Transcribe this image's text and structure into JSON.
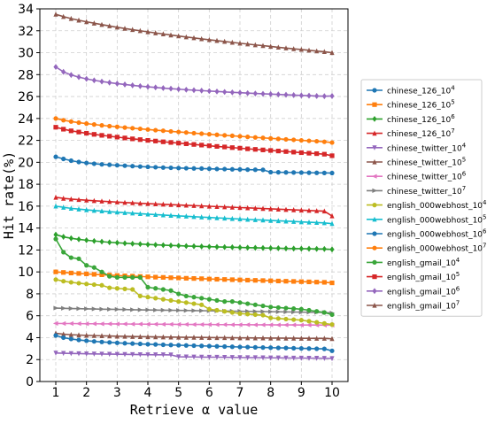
{
  "chart_data": {
    "type": "line",
    "xlabel": "Retrieve α value",
    "ylabel": "Hit rate(%)",
    "xlim": [
      1,
      10
    ],
    "ylim": [
      0,
      34
    ],
    "xticks": [
      "1",
      "2",
      "3",
      "4",
      "5",
      "6",
      "7",
      "8",
      "9",
      "10"
    ],
    "yticks": [
      "0",
      "2",
      "4",
      "6",
      "8",
      "10",
      "12",
      "14",
      "16",
      "18",
      "20",
      "22",
      "24",
      "26",
      "28",
      "30",
      "32",
      "34"
    ],
    "x": [
      1.0,
      1.25,
      1.5,
      1.75,
      2.0,
      2.25,
      2.5,
      2.75,
      3.0,
      3.25,
      3.5,
      3.75,
      4.0,
      4.25,
      4.5,
      4.75,
      5.0,
      5.25,
      5.5,
      5.75,
      6.0,
      6.25,
      6.5,
      6.75,
      7.0,
      7.25,
      7.5,
      7.75,
      8.0,
      8.25,
      8.5,
      8.75,
      9.0,
      9.25,
      9.5,
      9.75,
      10.0
    ],
    "grid": true,
    "grid_style": "dashed",
    "legend_position": "right",
    "series": [
      {
        "name": "chinese_126_10",
        "exp": "4",
        "color": "#1f77b4",
        "marker": "circle",
        "values": [
          20.5,
          20.31,
          20.15,
          20.03,
          19.94,
          19.87,
          19.81,
          19.77,
          19.73,
          19.69,
          19.65,
          19.61,
          19.58,
          19.55,
          19.52,
          19.5,
          19.48,
          19.46,
          19.44,
          19.43,
          19.41,
          19.39,
          19.38,
          19.36,
          19.35,
          19.33,
          19.32,
          19.31,
          19.1,
          19.09,
          19.08,
          19.07,
          19.06,
          19.05,
          19.04,
          19.03,
          19.02
        ]
      },
      {
        "name": "chinese_126_10",
        "exp": "5",
        "color": "#ff7f0e",
        "marker": "square",
        "values": [
          10.0,
          9.95,
          9.9,
          9.86,
          9.82,
          9.78,
          9.74,
          9.71,
          9.67,
          9.64,
          9.61,
          9.58,
          9.55,
          9.52,
          9.5,
          9.47,
          9.45,
          9.42,
          9.4,
          9.38,
          9.35,
          9.33,
          9.31,
          9.29,
          9.27,
          9.25,
          9.23,
          9.21,
          9.19,
          9.17,
          9.15,
          9.13,
          9.11,
          9.09,
          9.07,
          9.05,
          9.0
        ]
      },
      {
        "name": "chinese_126_10",
        "exp": "6",
        "color": "#2ca02c",
        "marker": "diamond",
        "values": [
          13.4,
          13.2,
          13.07,
          12.97,
          12.89,
          12.82,
          12.76,
          12.7,
          12.66,
          12.61,
          12.57,
          12.54,
          12.5,
          12.47,
          12.44,
          12.41,
          12.39,
          12.36,
          12.34,
          12.32,
          12.3,
          12.28,
          12.26,
          12.25,
          12.23,
          12.21,
          12.2,
          12.18,
          12.17,
          12.16,
          12.14,
          12.13,
          12.12,
          12.11,
          12.1,
          12.09,
          12.05
        ]
      },
      {
        "name": "chinese_126_10",
        "exp": "7",
        "color": "#d62728",
        "marker": "triangle",
        "values": [
          16.8,
          16.71,
          16.64,
          16.59,
          16.54,
          16.49,
          16.45,
          16.41,
          16.37,
          16.33,
          16.3,
          16.26,
          16.23,
          16.2,
          16.17,
          16.14,
          16.11,
          16.08,
          16.05,
          16.02,
          15.99,
          15.96,
          15.93,
          15.9,
          15.87,
          15.84,
          15.81,
          15.78,
          15.75,
          15.72,
          15.69,
          15.66,
          15.63,
          15.6,
          15.57,
          15.54,
          15.1
        ]
      },
      {
        "name": "chinese_twitter_10",
        "exp": "4",
        "color": "#9467bd",
        "marker": "triangle-down",
        "values": [
          2.6,
          2.58,
          2.56,
          2.55,
          2.53,
          2.52,
          2.51,
          2.5,
          2.49,
          2.48,
          2.47,
          2.46,
          2.45,
          2.44,
          2.44,
          2.43,
          2.26,
          2.25,
          2.24,
          2.23,
          2.22,
          2.22,
          2.21,
          2.2,
          2.19,
          2.18,
          2.18,
          2.17,
          2.16,
          2.16,
          2.15,
          2.14,
          2.14,
          2.13,
          2.13,
          2.12,
          2.1
        ]
      },
      {
        "name": "chinese_twitter_10",
        "exp": "5",
        "color": "#8c564b",
        "marker": "triangle-up",
        "values": [
          4.4,
          4.32,
          4.27,
          4.24,
          4.21,
          4.19,
          4.17,
          4.15,
          4.13,
          4.12,
          4.1,
          4.09,
          4.08,
          4.07,
          4.06,
          4.05,
          4.04,
          4.03,
          4.03,
          4.02,
          4.01,
          4.0,
          4.0,
          3.99,
          3.98,
          3.98,
          3.97,
          3.97,
          3.96,
          3.96,
          3.95,
          3.95,
          3.94,
          3.94,
          3.93,
          3.93,
          3.9
        ]
      },
      {
        "name": "chinese_twitter_10",
        "exp": "6",
        "color": "#e377c2",
        "marker": "triangle-left",
        "values": [
          5.3,
          5.29,
          5.29,
          5.28,
          5.27,
          5.27,
          5.26,
          5.26,
          5.25,
          5.25,
          5.24,
          5.24,
          5.23,
          5.23,
          5.22,
          5.22,
          5.21,
          5.21,
          5.2,
          5.2,
          5.2,
          5.19,
          5.19,
          5.18,
          5.18,
          5.18,
          5.17,
          5.17,
          5.17,
          5.16,
          5.16,
          5.16,
          5.15,
          5.15,
          5.15,
          5.14,
          5.14
        ]
      },
      {
        "name": "chinese_twitter_10",
        "exp": "7",
        "color": "#7f7f7f",
        "marker": "triangle-right",
        "values": [
          6.7,
          6.68,
          6.66,
          6.65,
          6.63,
          6.62,
          6.6,
          6.59,
          6.58,
          6.57,
          6.55,
          6.54,
          6.53,
          6.52,
          6.51,
          6.5,
          6.49,
          6.48,
          6.47,
          6.46,
          6.45,
          6.44,
          6.43,
          6.42,
          6.41,
          6.4,
          6.39,
          6.38,
          6.37,
          6.36,
          6.35,
          6.34,
          6.33,
          6.32,
          6.31,
          6.3,
          6.25
        ]
      },
      {
        "name": "english_000webhost_10",
        "exp": "4",
        "color": "#bcbd22",
        "marker": "circle",
        "values": [
          9.3,
          9.15,
          9.05,
          8.97,
          8.9,
          8.84,
          8.78,
          8.55,
          8.5,
          8.45,
          8.4,
          7.8,
          7.7,
          7.6,
          7.5,
          7.4,
          7.3,
          7.2,
          7.1,
          7.0,
          6.6,
          6.5,
          6.4,
          6.3,
          6.2,
          6.15,
          6.1,
          6.05,
          5.8,
          5.75,
          5.7,
          5.65,
          5.6,
          5.5,
          5.4,
          5.3,
          5.2
        ]
      },
      {
        "name": "english_000webhost_10",
        "exp": "5",
        "color": "#17becf",
        "marker": "triangle",
        "values": [
          16.0,
          15.89,
          15.8,
          15.73,
          15.66,
          15.6,
          15.55,
          15.49,
          15.45,
          15.4,
          15.36,
          15.31,
          15.27,
          15.23,
          15.19,
          15.15,
          15.11,
          15.08,
          15.04,
          15.0,
          14.97,
          14.93,
          14.9,
          14.86,
          14.83,
          14.79,
          14.76,
          14.73,
          14.69,
          14.66,
          14.63,
          14.6,
          14.56,
          14.53,
          14.5,
          14.47,
          14.4
        ]
      },
      {
        "name": "english_000webhost_10",
        "exp": "6",
        "color": "#1f77b4",
        "marker": "circle",
        "values": [
          4.2,
          4.0,
          3.88,
          3.79,
          3.72,
          3.66,
          3.61,
          3.57,
          3.53,
          3.49,
          3.46,
          3.43,
          3.4,
          3.38,
          3.35,
          3.33,
          3.31,
          3.29,
          3.27,
          3.25,
          3.23,
          3.21,
          3.19,
          3.17,
          3.15,
          3.14,
          3.12,
          3.1,
          3.09,
          3.07,
          3.06,
          3.04,
          3.02,
          3.01,
          2.99,
          2.98,
          2.8
        ]
      },
      {
        "name": "english_000webhost_10",
        "exp": "7",
        "color": "#ff7f0e",
        "marker": "circle",
        "values": [
          24.0,
          23.84,
          23.72,
          23.62,
          23.53,
          23.45,
          23.37,
          23.3,
          23.24,
          23.17,
          23.11,
          23.05,
          22.99,
          22.93,
          22.88,
          22.82,
          22.77,
          22.72,
          22.66,
          22.61,
          22.56,
          22.51,
          22.46,
          22.42,
          22.37,
          22.32,
          22.27,
          22.23,
          22.18,
          22.14,
          22.09,
          22.05,
          22.0,
          21.96,
          21.92,
          21.87,
          21.8
        ]
      },
      {
        "name": "english_gmail_10",
        "exp": "4",
        "color": "#3aa63a",
        "marker": "circle",
        "values": [
          13.0,
          11.8,
          11.3,
          11.2,
          10.6,
          10.4,
          10.0,
          9.6,
          9.5,
          9.5,
          9.5,
          9.5,
          8.6,
          8.5,
          8.4,
          8.3,
          8.0,
          7.8,
          7.7,
          7.6,
          7.5,
          7.4,
          7.3,
          7.3,
          7.2,
          7.1,
          7.0,
          6.9,
          6.8,
          6.75,
          6.7,
          6.65,
          6.6,
          6.5,
          6.4,
          6.3,
          6.1
        ]
      },
      {
        "name": "english_gmail_10",
        "exp": "5",
        "color": "#d62728",
        "marker": "square",
        "values": [
          23.2,
          23.02,
          22.87,
          22.76,
          22.65,
          22.55,
          22.46,
          22.38,
          22.3,
          22.22,
          22.14,
          22.07,
          22.0,
          21.94,
          21.87,
          21.81,
          21.75,
          21.69,
          21.63,
          21.57,
          21.51,
          21.45,
          21.4,
          21.34,
          21.29,
          21.23,
          21.18,
          21.13,
          21.08,
          21.03,
          20.98,
          20.93,
          20.88,
          20.83,
          20.79,
          20.74,
          20.6
        ]
      },
      {
        "name": "english_gmail_10",
        "exp": "6",
        "color": "#9467bd",
        "marker": "diamond",
        "values": [
          28.7,
          28.25,
          27.97,
          27.77,
          27.61,
          27.48,
          27.37,
          27.27,
          27.18,
          27.1,
          27.02,
          26.95,
          26.89,
          26.83,
          26.77,
          26.72,
          26.67,
          26.62,
          26.58,
          26.54,
          26.5,
          26.46,
          26.42,
          26.38,
          26.35,
          26.31,
          26.28,
          26.25,
          26.22,
          26.19,
          26.16,
          26.13,
          26.1,
          26.08,
          26.05,
          26.03,
          26.05
        ]
      },
      {
        "name": "english_gmail_10",
        "exp": "7",
        "color": "#8c564b",
        "marker": "triangle",
        "values": [
          33.5,
          33.29,
          33.11,
          32.96,
          32.82,
          32.69,
          32.56,
          32.44,
          32.32,
          32.21,
          32.1,
          32.0,
          31.9,
          31.8,
          31.71,
          31.61,
          31.52,
          31.43,
          31.35,
          31.26,
          31.18,
          31.1,
          31.02,
          30.94,
          30.86,
          30.79,
          30.71,
          30.64,
          30.57,
          30.49,
          30.42,
          30.35,
          30.29,
          30.22,
          30.15,
          30.09,
          30.0
        ]
      }
    ]
  }
}
